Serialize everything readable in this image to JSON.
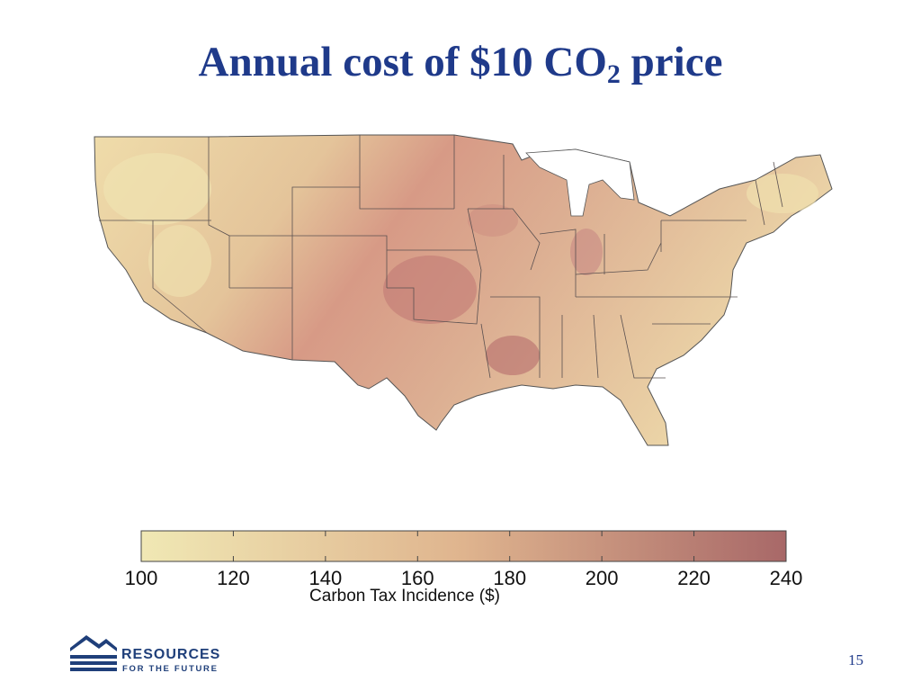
{
  "slide": {
    "title_main": "Annual cost of $10 CO",
    "title_subscript": "2",
    "title_tail": " price",
    "page_number": "15"
  },
  "map": {
    "region": "Contiguous United States",
    "metric": "Carbon Tax Incidence ($)",
    "high_regions": [
      "Oklahoma",
      "Louisiana",
      "Kansas",
      "Nebraska",
      "Indiana"
    ],
    "low_regions": [
      "Pacific Northwest",
      "Nevada",
      "New England"
    ]
  },
  "legend": {
    "label": "Carbon Tax Incidence ($)",
    "ticks": [
      "100",
      "120",
      "140",
      "160",
      "180",
      "200",
      "220",
      "240"
    ],
    "min": 100,
    "max": 240,
    "color_low": "#f0e8b4",
    "color_mid": "#dfb48e",
    "color_high": "#a86868"
  },
  "logo": {
    "name": "RESOURCES",
    "tagline": "FOR THE FUTURE",
    "color": "#1f3f7a"
  }
}
